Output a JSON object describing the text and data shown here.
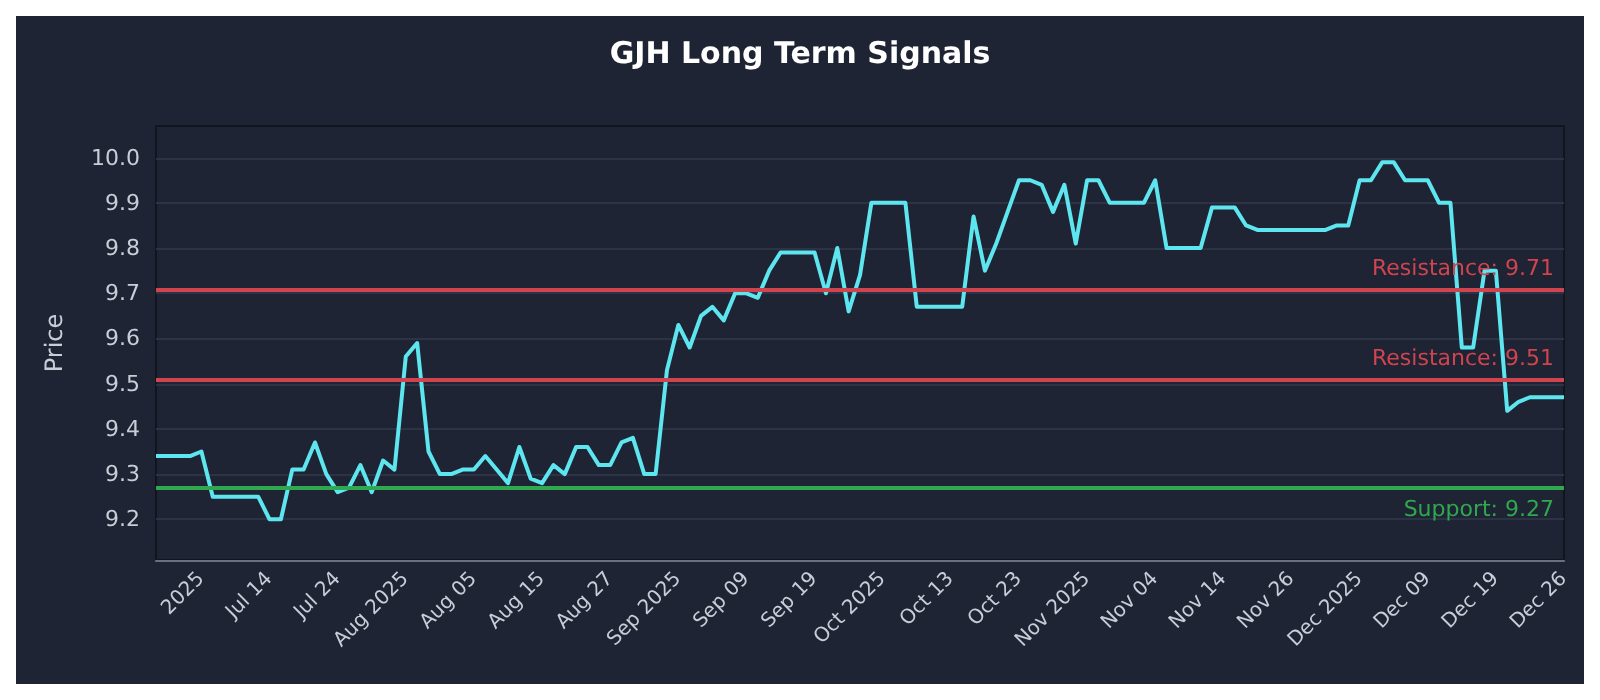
{
  "chart_data": {
    "type": "line",
    "title": "GJH Long Term Signals",
    "ylabel": "Price",
    "categories": [
      null,
      null,
      null,
      null,
      "2025",
      null,
      null,
      null,
      null,
      null,
      "Jul 14",
      null,
      null,
      null,
      null,
      null,
      "Jul 24",
      null,
      null,
      null,
      null,
      null,
      "Aug 2025",
      null,
      null,
      null,
      null,
      null,
      "Aug 05",
      null,
      null,
      null,
      null,
      null,
      "Aug 15",
      null,
      null,
      null,
      null,
      null,
      "Aug 27",
      null,
      null,
      null,
      null,
      null,
      "Sep 2025",
      null,
      null,
      null,
      null,
      null,
      "Sep 09",
      null,
      null,
      null,
      null,
      null,
      "Sep 19",
      null,
      null,
      null,
      null,
      null,
      "Oct 2025",
      null,
      null,
      null,
      null,
      null,
      "Oct 13",
      null,
      null,
      null,
      null,
      null,
      "Oct 23",
      null,
      null,
      null,
      null,
      null,
      "Nov 2025",
      null,
      null,
      null,
      null,
      null,
      "Nov 04",
      null,
      null,
      null,
      null,
      null,
      "Nov 14",
      null,
      null,
      null,
      null,
      null,
      "Nov 26",
      null,
      null,
      null,
      null,
      null,
      "Dec 2025",
      null,
      null,
      null,
      null,
      null,
      "Dec 09",
      null,
      null,
      null,
      null,
      null,
      "Dec 19",
      null,
      null,
      null,
      null,
      null,
      "Dec 26"
    ],
    "series": [
      {
        "color": "#5ee6f0",
        "values": [
          9.34,
          9.34,
          9.34,
          9.34,
          9.35,
          9.25,
          9.25,
          9.25,
          9.25,
          9.25,
          9.2,
          9.2,
          9.31,
          9.31,
          9.37,
          9.3,
          9.26,
          9.27,
          9.32,
          9.26,
          9.33,
          9.31,
          9.56,
          9.59,
          9.35,
          9.3,
          9.3,
          9.31,
          9.31,
          9.34,
          9.31,
          9.28,
          9.36,
          9.29,
          9.28,
          9.32,
          9.3,
          9.36,
          9.36,
          9.32,
          9.32,
          9.37,
          9.38,
          9.3,
          9.3,
          9.53,
          9.63,
          9.58,
          9.65,
          9.67,
          9.64,
          9.7,
          9.7,
          9.69,
          9.75,
          9.79,
          9.79,
          9.79,
          9.79,
          9.7,
          9.8,
          9.66,
          9.74,
          9.9,
          9.9,
          9.9,
          9.9,
          9.67,
          9.67,
          9.67,
          9.67,
          9.67,
          9.87,
          9.75,
          9.81,
          9.88,
          9.95,
          9.95,
          9.94,
          9.88,
          9.94,
          9.81,
          9.95,
          9.95,
          9.9,
          9.9,
          9.9,
          9.9,
          9.95,
          9.8,
          9.8,
          9.8,
          9.8,
          9.89,
          9.89,
          9.89,
          9.85,
          9.84,
          9.84,
          9.84,
          9.84,
          9.84,
          9.84,
          9.84,
          9.85,
          9.85,
          9.95,
          9.95,
          9.99,
          9.99,
          9.95,
          9.95,
          9.95,
          9.9,
          9.9,
          9.58,
          9.58,
          9.75,
          9.75,
          9.44,
          9.46,
          9.47,
          9.47,
          9.47,
          9.47
        ]
      }
    ],
    "ylim": [
      9.11,
      10.07
    ],
    "yticks": [
      9.2,
      9.3,
      9.4,
      9.5,
      9.6,
      9.7,
      9.8,
      9.9,
      {
        "value": 10,
        "label": "10.0"
      }
    ],
    "ref_lines": [
      {
        "axis": "y",
        "value": 9.71,
        "label": "Resistance: 9.71",
        "color": "#d0444f"
      },
      {
        "axis": "y",
        "value": 9.51,
        "label": "Resistance: 9.51",
        "color": "#d0444f"
      },
      {
        "axis": "y",
        "value": 9.27,
        "label": "Support: 9.27",
        "color": "#2fa84f"
      }
    ],
    "grid": "y",
    "marker": "none",
    "line_style": "solid"
  }
}
